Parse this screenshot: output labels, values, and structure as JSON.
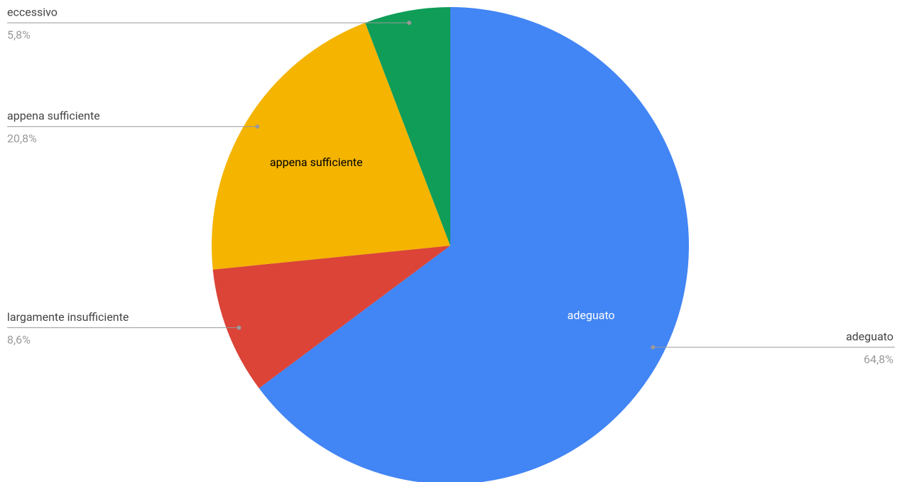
{
  "chart_data": {
    "type": "pie",
    "categories": [
      "adeguato",
      "largamente insufficiente",
      "appena sufficiente",
      "eccessivo"
    ],
    "values": [
      64.8,
      8.6,
      20.8,
      5.8
    ],
    "value_labels": [
      "64,8%",
      "8,6%",
      "20,8%",
      "5,8%"
    ],
    "colors": [
      "#4285f4",
      "#db4437",
      "#f4b400",
      "#0f9d58"
    ]
  }
}
